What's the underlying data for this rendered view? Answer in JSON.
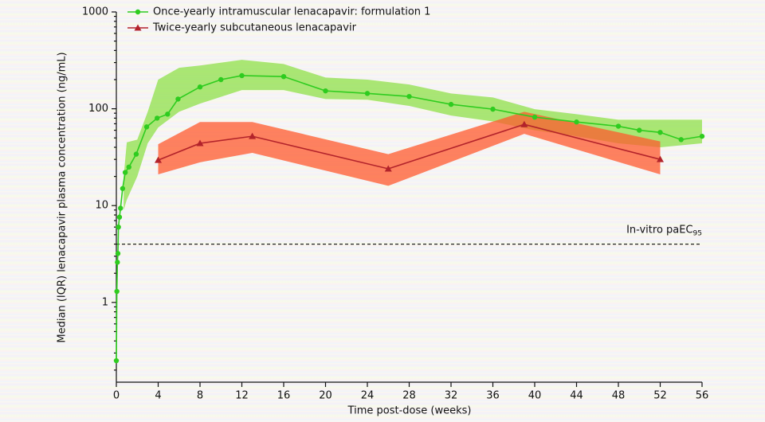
{
  "chart_data": {
    "type": "line",
    "xlabel": "Time post-dose (weeks)",
    "ylabel": "Median (IQR) lenacapavir plasma concentration (ng/mL)",
    "xlim": [
      0,
      56
    ],
    "xticks": [
      0,
      4,
      8,
      12,
      16,
      20,
      24,
      28,
      32,
      36,
      40,
      44,
      48,
      52,
      56
    ],
    "ylim": [
      0.15,
      1000
    ],
    "yticks": [
      1,
      10,
      100,
      1000
    ],
    "yscale": "log",
    "legend": "top-left",
    "reference_line": {
      "value": 4,
      "label": "In-vitro paEC",
      "label_subscript": "95"
    },
    "series": [
      {
        "name": "Once-yearly intramuscular lenacapavir: formulation 1",
        "color": "#2ecc1f",
        "marker": "circle",
        "x": [
          0,
          0.05,
          0.1,
          0.15,
          0.2,
          0.3,
          0.4,
          0.6,
          0.85,
          1.2,
          1.9,
          2.9,
          3.9,
          4.9,
          5.9,
          8,
          10,
          12,
          16,
          20,
          24,
          28,
          32,
          36,
          40,
          44,
          48,
          50,
          52,
          54,
          56
        ],
        "values": [
          0.25,
          1.3,
          2.6,
          3.2,
          6,
          7.6,
          9.4,
          15,
          22,
          25,
          34,
          65,
          80,
          88,
          126,
          168,
          200,
          220,
          215,
          153,
          144,
          134,
          111,
          99,
          82,
          73,
          66,
          60,
          57,
          48,
          52
        ],
        "band": {
          "color": "#8fe04a",
          "x": [
            0.7,
            1,
            2,
            3,
            4,
            6,
            8,
            12,
            16,
            20,
            24,
            28,
            32,
            36,
            40,
            44,
            48,
            52,
            56
          ],
          "low": [
            9,
            11.5,
            20,
            44,
            64,
            93,
            113,
            156,
            156,
            126,
            124,
            107,
            85,
            74,
            60,
            52,
            44,
            40,
            44
          ],
          "high": [
            20,
            45,
            48,
            93,
            200,
            265,
            280,
            320,
            290,
            210,
            200,
            178,
            144,
            131,
            99,
            88,
            77,
            77,
            77
          ]
        }
      },
      {
        "name": "Twice-yearly subcutaneous lenacapavir",
        "color": "#b3232b",
        "marker": "triangle",
        "x": [
          4,
          8,
          13,
          26,
          39,
          52
        ],
        "values": [
          29.5,
          44,
          52,
          24,
          69,
          30
        ],
        "band": {
          "color": "#ff5a2e",
          "x": [
            4,
            8,
            13,
            26,
            39,
            52
          ],
          "low": [
            21,
            28,
            35,
            16,
            55,
            21
          ],
          "high": [
            43,
            73,
            73,
            34,
            93,
            46
          ]
        }
      }
    ]
  }
}
